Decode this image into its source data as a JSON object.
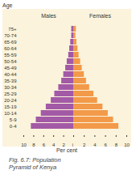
{
  "chart_data": {
    "type": "bar",
    "orientation": "horizontal",
    "title": "Fig. 6.7: Population Pyramid of Kenya",
    "ylabel": "Age",
    "xlabel": "Per cent",
    "categories": [
      "75+",
      "70-74",
      "65-69",
      "60-64",
      "55-59",
      "50-54",
      "45-49",
      "40-44",
      "35-39",
      "30-34",
      "25-29",
      "20-24",
      "15-19",
      "10-14",
      "5-9",
      "0-4"
    ],
    "series": [
      {
        "name": "Males",
        "color": "#a35aa6",
        "values": [
          0.4,
          0.4,
          0.6,
          0.8,
          1.0,
          1.3,
          1.6,
          2.0,
          2.4,
          3.0,
          3.8,
          4.5,
          5.5,
          6.5,
          7.5,
          8.5
        ]
      },
      {
        "name": "Females",
        "color": "#f29a4a",
        "values": [
          0.5,
          0.4,
          0.6,
          0.8,
          1.0,
          1.3,
          1.6,
          2.0,
          2.4,
          3.0,
          3.8,
          4.5,
          5.5,
          6.5,
          7.5,
          8.5
        ]
      }
    ],
    "xlim": [
      0,
      10
    ],
    "xticks": [
      0,
      2,
      4,
      6,
      8,
      10
    ]
  }
}
